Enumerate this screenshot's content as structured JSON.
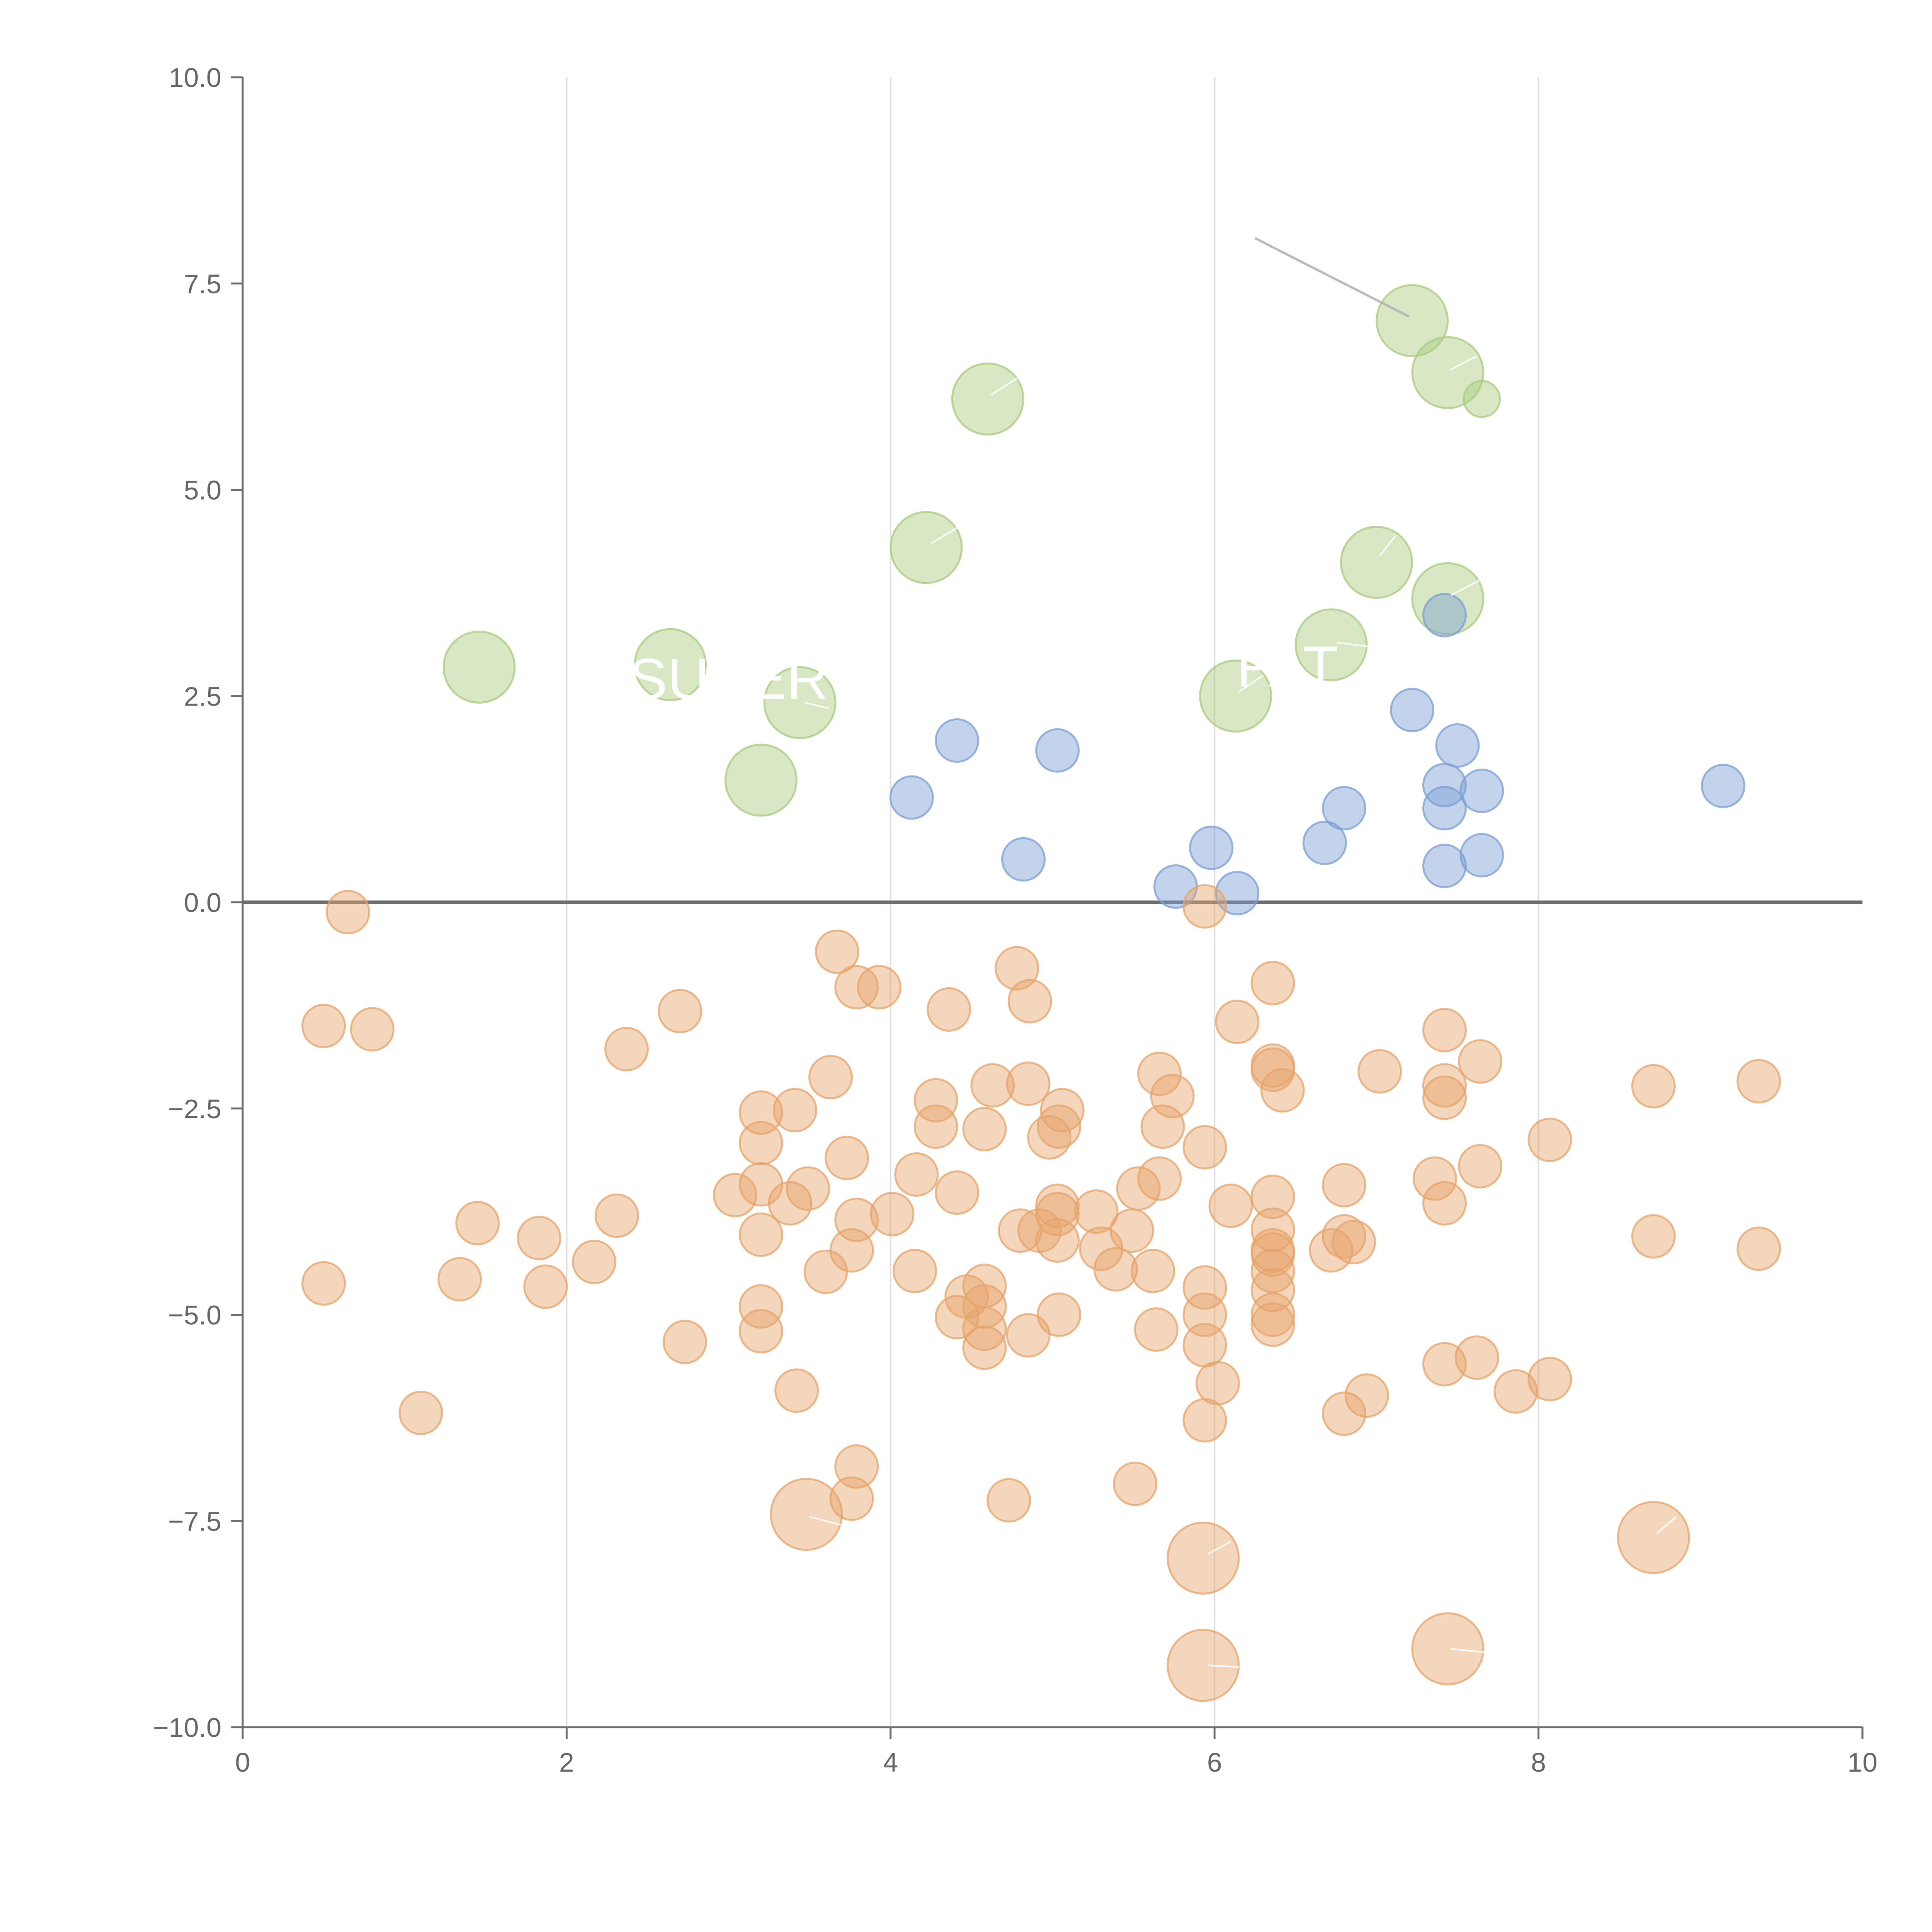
{
  "chart_data": {
    "type": "scatter",
    "title": "",
    "xlabel": "",
    "ylabel": "",
    "xlim": [
      0,
      10
    ],
    "ylim": [
      -10,
      10
    ],
    "x_ticks": [
      0,
      2,
      4,
      6,
      8,
      10
    ],
    "x_tick_labels": [
      "0",
      "2",
      "4",
      "6",
      "8",
      "10"
    ],
    "y_ticks": [
      10,
      7.5,
      5,
      2.5,
      0,
      -2.5,
      -5,
      -7.5,
      -10
    ],
    "y_tick_labels": [
      "10.0",
      "7.5",
      "5.0",
      "2.5",
      "0.0",
      "−2.5",
      "−5.0",
      "−7.5",
      "−10.0"
    ],
    "grid": "vertical-only",
    "reference_line_y": 0,
    "colors": {
      "green": "#a9c97d",
      "blue": "#7b9ed3",
      "orange": "#e6a36a",
      "axis": "#6e6e6e",
      "grid": "#dddddd",
      "annotation_line": "#b3b3b3"
    },
    "series": [
      {
        "name": "green",
        "color": "#a9c97d",
        "size": "large",
        "points": [
          [
            7.22,
            7.05
          ],
          [
            7.44,
            6.42
          ],
          [
            7.65,
            6.1
          ],
          [
            4.6,
            6.1
          ],
          [
            4.22,
            4.3
          ],
          [
            7.0,
            4.12
          ],
          [
            7.44,
            3.68
          ],
          [
            1.46,
            2.85
          ],
          [
            2.64,
            2.88
          ],
          [
            3.44,
            2.42
          ],
          [
            6.72,
            3.12
          ],
          [
            6.13,
            2.5
          ],
          [
            3.2,
            1.48
          ]
        ],
        "big": [
          true,
          true,
          false,
          true,
          true,
          true,
          true,
          true,
          true,
          true,
          true,
          true,
          true
        ]
      },
      {
        "name": "blue",
        "color": "#7b9ed3",
        "size": "small",
        "points": [
          [
            7.42,
            3.48
          ],
          [
            7.22,
            2.33
          ],
          [
            7.5,
            1.9
          ],
          [
            7.42,
            1.42
          ],
          [
            7.65,
            1.35
          ],
          [
            7.42,
            1.14
          ],
          [
            6.8,
            1.14
          ],
          [
            6.68,
            0.72
          ],
          [
            7.65,
            0.57
          ],
          [
            7.42,
            0.44
          ],
          [
            9.14,
            1.41
          ],
          [
            5.03,
            1.84
          ],
          [
            4.41,
            1.96
          ],
          [
            4.13,
            1.27
          ],
          [
            4.82,
            0.52
          ],
          [
            5.98,
            0.66
          ],
          [
            5.76,
            0.19
          ],
          [
            6.14,
            0.11
          ]
        ]
      },
      {
        "name": "orange",
        "color": "#e6a36a",
        "size": "small",
        "points": [
          [
            0.65,
            -0.12
          ],
          [
            0.5,
            -1.5
          ],
          [
            0.8,
            -1.54
          ],
          [
            0.5,
            -4.62
          ],
          [
            1.34,
            -4.57
          ],
          [
            1.45,
            -3.89
          ],
          [
            1.83,
            -4.07
          ],
          [
            1.87,
            -4.66
          ],
          [
            1.1,
            -6.19
          ],
          [
            2.17,
            -4.36
          ],
          [
            2.31,
            -3.8
          ],
          [
            2.37,
            -1.78
          ],
          [
            2.7,
            -1.32
          ],
          [
            2.73,
            -5.33
          ],
          [
            3.04,
            -3.55
          ],
          [
            3.2,
            -2.55
          ],
          [
            3.2,
            -2.92
          ],
          [
            3.2,
            -3.42
          ],
          [
            3.2,
            -4.03
          ],
          [
            3.2,
            -4.9
          ],
          [
            3.2,
            -5.2
          ],
          [
            3.41,
            -2.52
          ],
          [
            3.38,
            -3.65
          ],
          [
            3.49,
            -3.47
          ],
          [
            3.42,
            -5.92
          ],
          [
            3.67,
            -0.6
          ],
          [
            3.63,
            -2.12
          ],
          [
            3.6,
            -4.48
          ],
          [
            3.73,
            -3.1
          ],
          [
            3.79,
            -1.03
          ],
          [
            3.93,
            -1.03
          ],
          [
            3.79,
            -3.85
          ],
          [
            3.76,
            -4.22
          ],
          [
            3.79,
            -6.84
          ],
          [
            3.76,
            -7.23
          ],
          [
            4.01,
            -3.78
          ],
          [
            4.16,
            -3.3
          ],
          [
            4.15,
            -4.47
          ],
          [
            4.41,
            -3.52
          ],
          [
            4.36,
            -1.3
          ],
          [
            4.28,
            -2.4
          ],
          [
            4.28,
            -2.72
          ],
          [
            4.47,
            -4.78
          ],
          [
            4.41,
            -5.03
          ],
          [
            4.58,
            -2.75
          ],
          [
            4.58,
            -4.65
          ],
          [
            4.58,
            -4.9
          ],
          [
            4.58,
            -5.17
          ],
          [
            4.58,
            -5.4
          ],
          [
            4.63,
            -2.22
          ],
          [
            4.78,
            -0.8
          ],
          [
            4.86,
            -1.2
          ],
          [
            4.85,
            -2.2
          ],
          [
            4.8,
            -3.98
          ],
          [
            4.92,
            -3.98
          ],
          [
            4.85,
            -5.25
          ],
          [
            4.73,
            -7.25
          ],
          [
            4.98,
            -2.85
          ],
          [
            5.06,
            -2.52
          ],
          [
            5.04,
            -2.72
          ],
          [
            5.03,
            -3.68
          ],
          [
            5.03,
            -3.78
          ],
          [
            5.03,
            -4.1
          ],
          [
            5.04,
            -5.0
          ],
          [
            5.27,
            -3.75
          ],
          [
            5.3,
            -4.2
          ],
          [
            5.39,
            -4.45
          ],
          [
            5.49,
            -3.98
          ],
          [
            5.53,
            -3.47
          ],
          [
            5.51,
            -7.05
          ],
          [
            5.62,
            -4.47
          ],
          [
            5.64,
            -5.18
          ],
          [
            5.66,
            -2.08
          ],
          [
            5.74,
            -2.35
          ],
          [
            5.68,
            -2.72
          ],
          [
            5.66,
            -3.35
          ],
          [
            5.94,
            -2.97
          ],
          [
            5.94,
            -4.67
          ],
          [
            5.94,
            -5.0
          ],
          [
            5.94,
            -5.37
          ],
          [
            6.02,
            -5.83
          ],
          [
            5.94,
            -6.28
          ],
          [
            5.94,
            -0.05
          ],
          [
            6.14,
            -1.45
          ],
          [
            6.1,
            -3.68
          ],
          [
            6.36,
            -0.98
          ],
          [
            6.36,
            -1.98
          ],
          [
            6.36,
            -2.03
          ],
          [
            6.42,
            -2.28
          ],
          [
            6.36,
            -3.57
          ],
          [
            6.36,
            -3.97
          ],
          [
            6.36,
            -4.22
          ],
          [
            6.36,
            -4.27
          ],
          [
            6.36,
            -4.47
          ],
          [
            6.36,
            -4.7
          ],
          [
            6.36,
            -5.0
          ],
          [
            6.36,
            -5.12
          ],
          [
            6.72,
            -4.22
          ],
          [
            6.8,
            -4.05
          ],
          [
            6.86,
            -4.12
          ],
          [
            6.8,
            -3.43
          ],
          [
            7.02,
            -2.05
          ],
          [
            6.94,
            -5.98
          ],
          [
            6.8,
            -6.2
          ],
          [
            7.42,
            -1.55
          ],
          [
            7.42,
            -2.22
          ],
          [
            7.42,
            -2.37
          ],
          [
            7.36,
            -3.35
          ],
          [
            7.42,
            -3.65
          ],
          [
            7.64,
            -1.93
          ],
          [
            7.64,
            -3.2
          ],
          [
            7.42,
            -5.6
          ],
          [
            7.62,
            -5.52
          ],
          [
            7.86,
            -5.93
          ],
          [
            8.07,
            -2.88
          ],
          [
            8.07,
            -5.78
          ],
          [
            8.71,
            -2.23
          ],
          [
            8.71,
            -4.05
          ],
          [
            9.36,
            -2.17
          ],
          [
            9.36,
            -4.2
          ]
        ]
      },
      {
        "name": "orange-large",
        "color": "#e6a36a",
        "size": "large",
        "points": [
          [
            3.48,
            -7.42
          ],
          [
            5.93,
            -7.95
          ],
          [
            5.93,
            -9.25
          ],
          [
            7.44,
            -9.05
          ],
          [
            8.71,
            -7.7
          ]
        ]
      }
    ],
    "annotations": [
      {
        "text": "SUPER",
        "x": 3.0,
        "y": 2.7
      },
      {
        "text": "FAT",
        "x": 6.45,
        "y": 2.85
      }
    ],
    "leader_lines": [
      {
        "color": "light-gray",
        "from": [
          6.25,
          8.05
        ],
        "to": [
          7.2,
          7.1
        ]
      },
      {
        "color": "white",
        "from": [
          7.45,
          6.45
        ],
        "to": [
          7.62,
          6.62
        ]
      },
      {
        "color": "white",
        "from": [
          4.62,
          6.15
        ],
        "to": [
          4.78,
          6.35
        ]
      },
      {
        "color": "white",
        "from": [
          4.25,
          4.35
        ],
        "to": [
          4.42,
          4.55
        ]
      },
      {
        "color": "white",
        "from": [
          7.02,
          4.2
        ],
        "to": [
          7.12,
          4.45
        ]
      },
      {
        "color": "white",
        "from": [
          7.46,
          3.72
        ],
        "to": [
          7.68,
          3.95
        ]
      },
      {
        "color": "white",
        "from": [
          6.75,
          3.15
        ],
        "to": [
          6.95,
          3.1
        ]
      },
      {
        "color": "white",
        "from": [
          6.15,
          2.55
        ],
        "to": [
          6.3,
          2.75
        ]
      },
      {
        "color": "white",
        "from": [
          3.47,
          2.42
        ],
        "to": [
          3.62,
          2.35
        ]
      },
      {
        "color": "white",
        "from": [
          3.5,
          -7.45
        ],
        "to": [
          3.7,
          -7.55
        ]
      },
      {
        "color": "white",
        "from": [
          5.96,
          -7.9
        ],
        "to": [
          6.1,
          -7.75
        ]
      },
      {
        "color": "white",
        "from": [
          5.96,
          -9.25
        ],
        "to": [
          6.15,
          -9.27
        ]
      },
      {
        "color": "white",
        "from": [
          7.46,
          -9.05
        ],
        "to": [
          7.7,
          -9.1
        ]
      },
      {
        "color": "white",
        "from": [
          8.73,
          -7.65
        ],
        "to": [
          8.85,
          -7.45
        ]
      }
    ]
  }
}
